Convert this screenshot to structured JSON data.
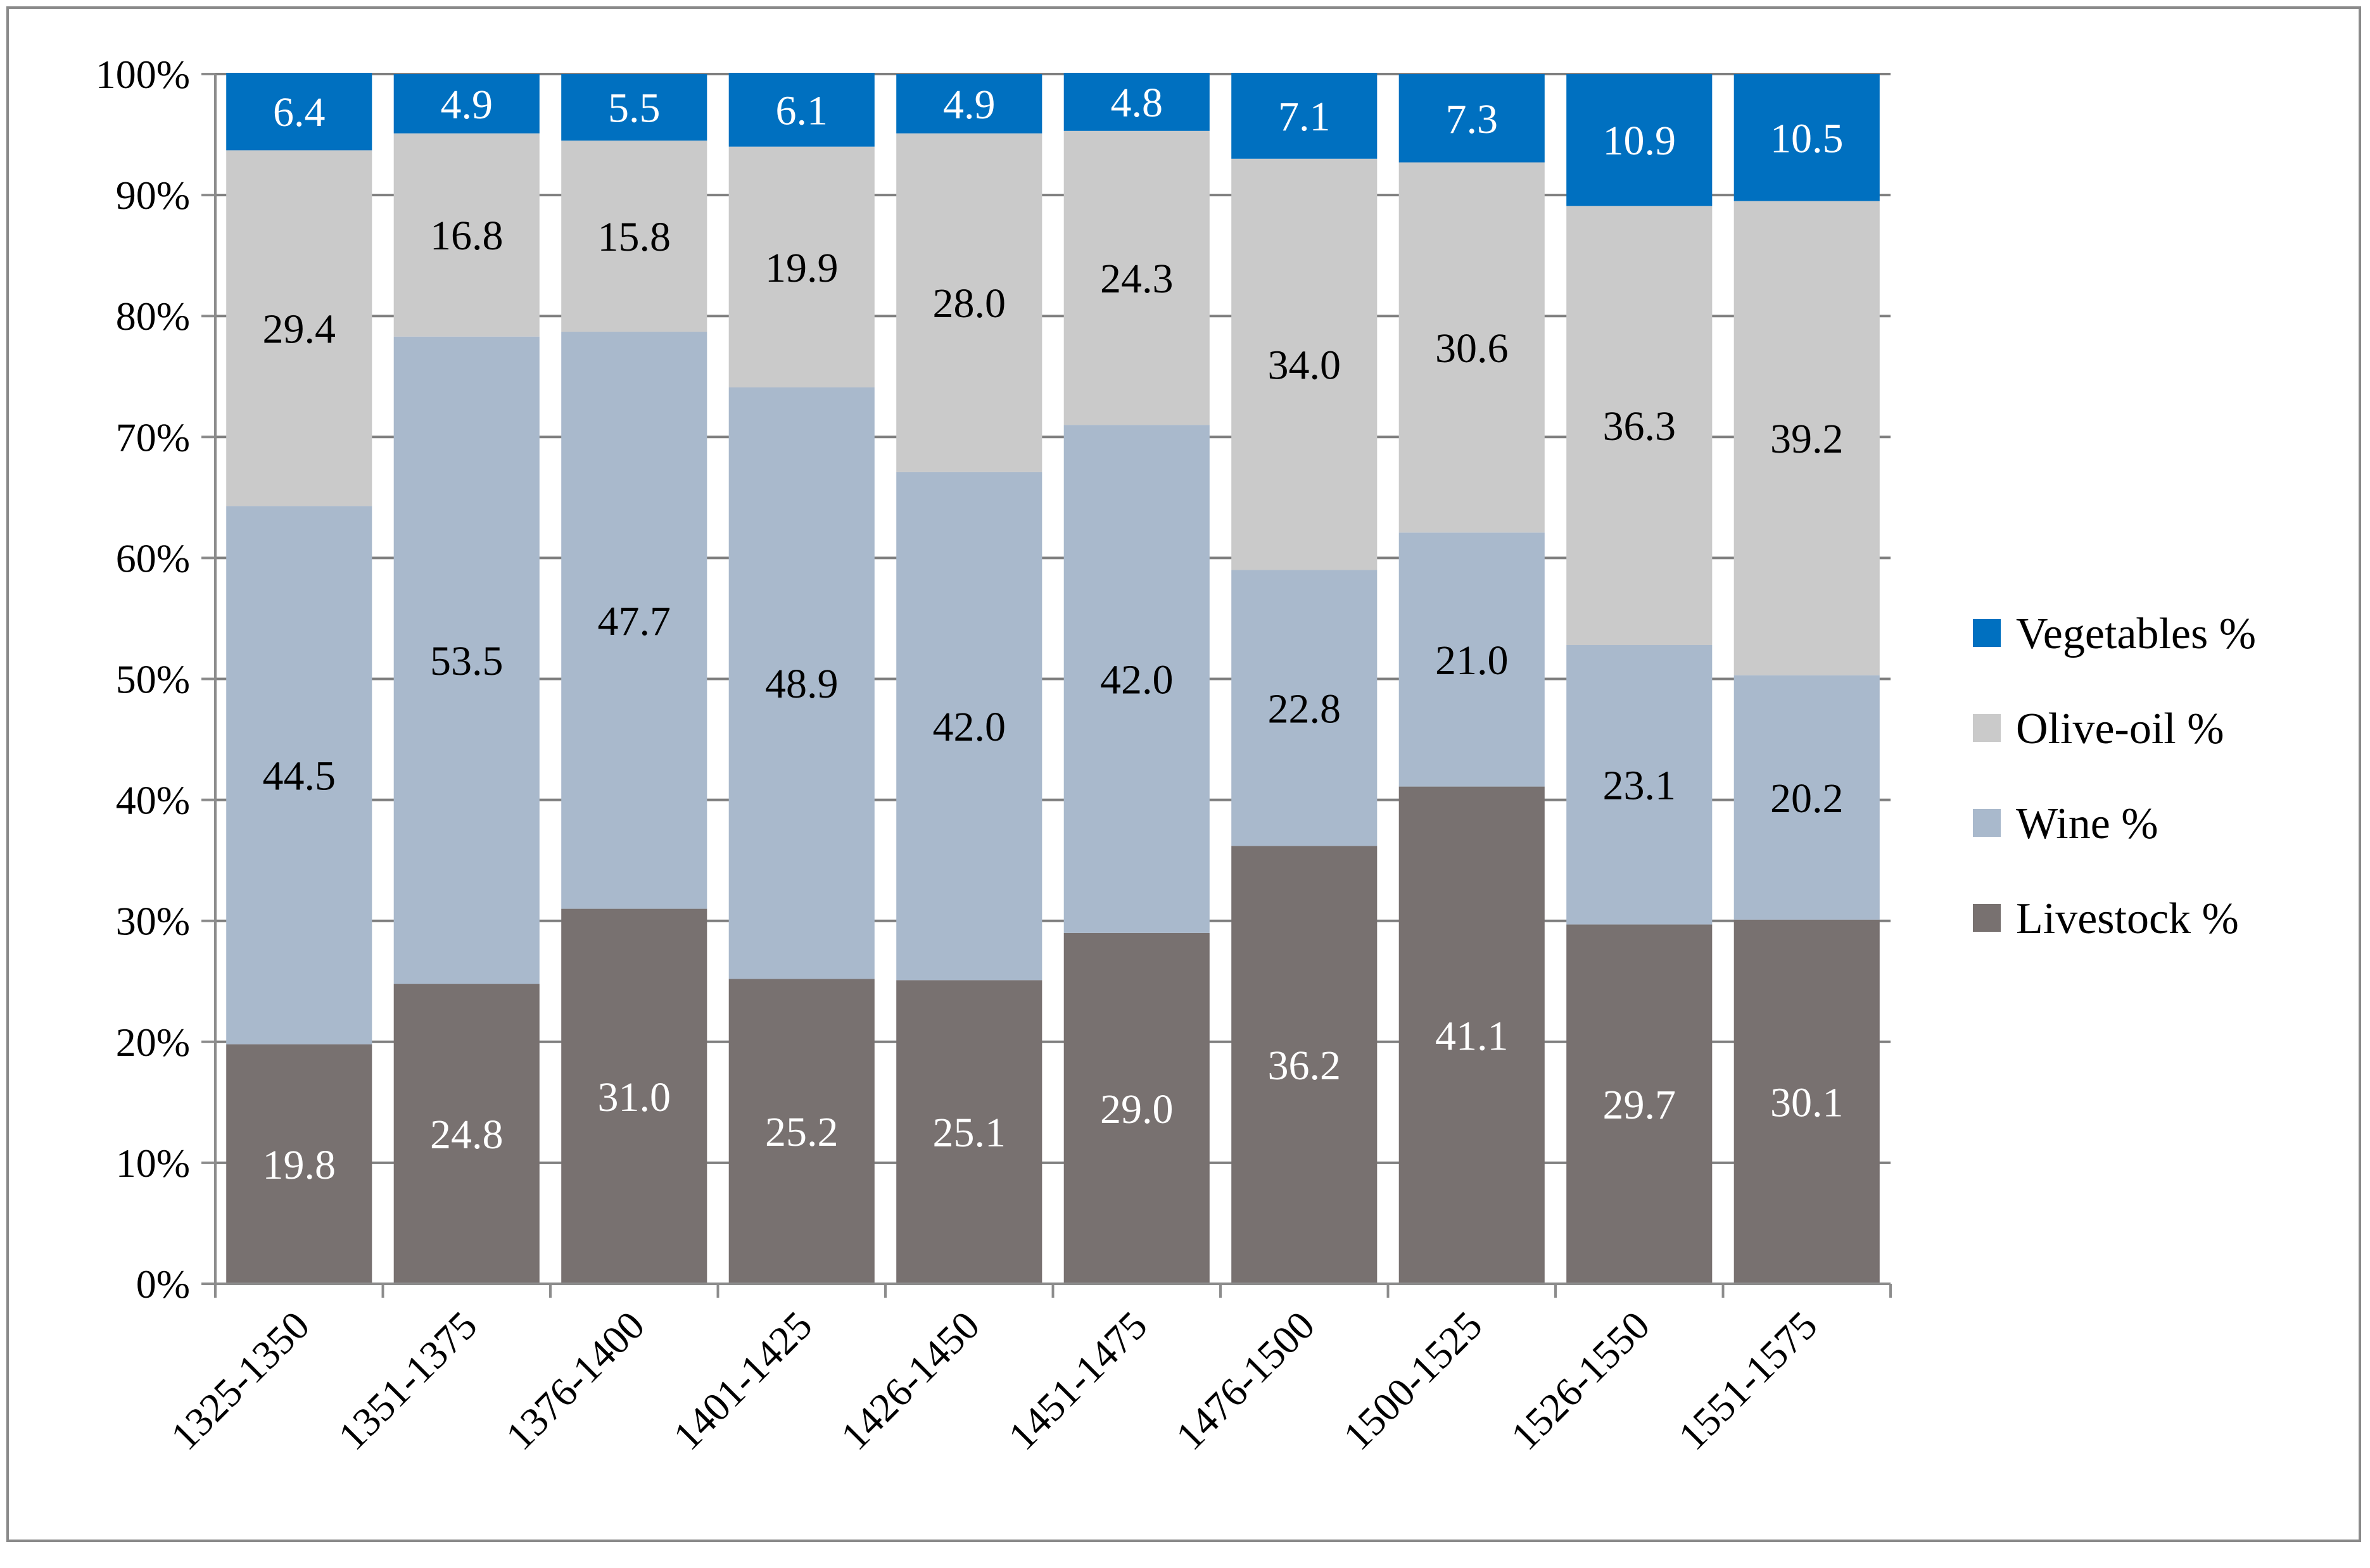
{
  "chart_data": {
    "type": "bar",
    "stacked": true,
    "normalized": true,
    "title": "",
    "xlabel": "",
    "ylabel": "",
    "ylim": [
      0,
      100
    ],
    "y_ticks": [
      "0%",
      "10%",
      "20%",
      "30%",
      "40%",
      "50%",
      "60%",
      "70%",
      "80%",
      "90%",
      "100%"
    ],
    "categories": [
      "1325-1350",
      "1351-1375",
      "1376-1400",
      "1401-1425",
      "1426-1450",
      "1451-1475",
      "1476-1500",
      "1500-1525",
      "1526-1550",
      "1551-1575"
    ],
    "series": [
      {
        "name": "Livestock %",
        "color": "#787170",
        "label_color": "#ffffff",
        "values": [
          19.8,
          24.8,
          31.0,
          25.2,
          25.1,
          29.0,
          36.2,
          41.1,
          29.7,
          30.1
        ]
      },
      {
        "name": "Wine %",
        "color": "#a9b9cc",
        "label_color": "#000000",
        "values": [
          44.5,
          53.5,
          47.7,
          48.9,
          42.0,
          42.0,
          22.8,
          21.0,
          23.1,
          20.2
        ]
      },
      {
        "name": "Olive-oil %",
        "color": "#cacaca",
        "label_color": "#000000",
        "values": [
          29.4,
          16.8,
          15.8,
          19.9,
          28.0,
          24.3,
          34.0,
          30.6,
          36.3,
          39.2
        ]
      },
      {
        "name": "Vegetables %",
        "color": "#0070c0",
        "label_color": "#ffffff",
        "values": [
          6.4,
          4.9,
          5.5,
          6.1,
          4.9,
          4.8,
          7.1,
          7.3,
          10.9,
          10.5
        ]
      }
    ],
    "legend": {
      "position": "right",
      "order": [
        "Vegetables %",
        "Olive-oil %",
        "Wine %",
        "Livestock %"
      ]
    },
    "grid": true,
    "gridline_color": "#7f7f7f",
    "axis_color": "#8c8c8c"
  }
}
